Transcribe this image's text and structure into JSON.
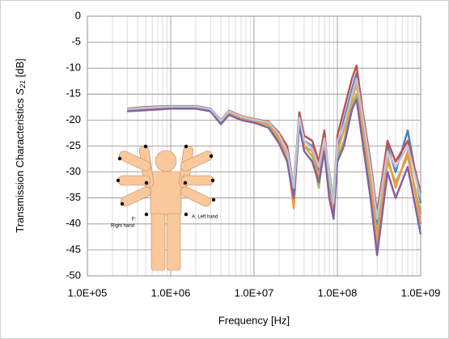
{
  "chart_data": {
    "type": "line",
    "xlabel": "Frequency [Hz]",
    "ylabel": {
      "text": "Transmission Characteristics",
      "symbol": "S",
      "subscript": "21",
      "unit": "[dB]"
    },
    "annotations": [
      "F:",
      "Right hand",
      "A: Left hand"
    ],
    "x_scale": "log",
    "grid": true,
    "minor_grid": true,
    "xlim": [
      100000,
      1000000000
    ],
    "xticks": [
      {
        "value": 100000,
        "label": "1.0E+05"
      },
      {
        "value": 1000000,
        "label": "1.0E+06"
      },
      {
        "value": 10000000,
        "label": "1.0E+07"
      },
      {
        "value": 100000000,
        "label": "1.0E+08"
      },
      {
        "value": 1000000000,
        "label": "1.0E+09"
      }
    ],
    "ylim": [
      -50,
      0
    ],
    "yticks": [
      0,
      -5,
      -10,
      -15,
      -20,
      -25,
      -30,
      -35,
      -40,
      -45,
      -50
    ],
    "x": [
      300000,
      500000,
      1000000,
      2000000,
      3000000,
      4000000,
      5000000,
      7000000,
      10000000,
      15000000,
      20000000,
      25000000,
      30000000,
      35000000,
      40000000,
      50000000,
      60000000,
      70000000,
      80000000,
      90000000,
      100000000,
      120000000,
      150000000,
      170000000,
      200000000,
      250000000,
      300000000,
      400000000,
      500000000,
      700000000,
      1000000000
    ],
    "series": [
      {
        "color": "#4f81bd",
        "values": [
          -18,
          -17.8,
          -17.5,
          -17.5,
          -18,
          -20.5,
          -18.5,
          -19.5,
          -20,
          -20.5,
          -23,
          -26,
          -35,
          -19,
          -24,
          -25,
          -30,
          -23,
          -33,
          -38,
          -25,
          -20,
          -14,
          -11,
          -20,
          -30,
          -40,
          -25,
          -30,
          -22,
          -36
        ]
      },
      {
        "color": "#c0504d",
        "values": [
          -17.8,
          -17.5,
          -17.3,
          -17.3,
          -17.8,
          -20,
          -18.2,
          -19.2,
          -19.8,
          -20.3,
          -22.5,
          -25,
          -33,
          -18.5,
          -23,
          -24,
          -28,
          -22,
          -32,
          -36,
          -23,
          -18,
          -12,
          -9.5,
          -18,
          -28,
          -38,
          -24,
          -28,
          -24,
          -34
        ]
      },
      {
        "color": "#9bbb59",
        "values": [
          -18.2,
          -18,
          -17.7,
          -17.7,
          -18.2,
          -20.5,
          -18.8,
          -19.8,
          -20.3,
          -21,
          -24,
          -27,
          -34,
          -20,
          -25,
          -27,
          -33,
          -25,
          -30,
          -35,
          -27,
          -24,
          -17,
          -15,
          -22,
          -33,
          -42,
          -28,
          -32,
          -27,
          -38
        ]
      },
      {
        "color": "#f79646",
        "values": [
          -18.1,
          -17.9,
          -17.6,
          -17.6,
          -18.1,
          -20.3,
          -18.6,
          -19.6,
          -20.2,
          -20.8,
          -23.5,
          -27,
          -37,
          -20,
          -25,
          -26,
          -31,
          -24,
          -34,
          -37,
          -26,
          -22,
          -16,
          -13,
          -21,
          -31,
          -44,
          -27,
          -33,
          -26,
          -40
        ]
      },
      {
        "color": "#8064a2",
        "values": [
          -18.3,
          -18.1,
          -17.8,
          -17.8,
          -18.3,
          -20.8,
          -19,
          -20,
          -20.5,
          -21.5,
          -24.5,
          -28,
          -35,
          -21,
          -26,
          -28,
          -32,
          -26,
          -35,
          -39,
          -28,
          -25,
          -18,
          -16,
          -24,
          -35,
          -46,
          -30,
          -35,
          -29,
          -42
        ]
      },
      {
        "color": "#b7c6dd",
        "values": [
          -17.9,
          -17.6,
          -17.4,
          -17.4,
          -17.9,
          -20.1,
          -18.3,
          -19.3,
          -19.9,
          -20.4,
          -22.8,
          -26,
          -33,
          -19.5,
          -24,
          -25.5,
          -29,
          -23.5,
          -31,
          -36,
          -24,
          -21,
          -15,
          -12,
          -19,
          -29,
          -39,
          -26,
          -29,
          -25,
          -35
        ]
      }
    ]
  }
}
